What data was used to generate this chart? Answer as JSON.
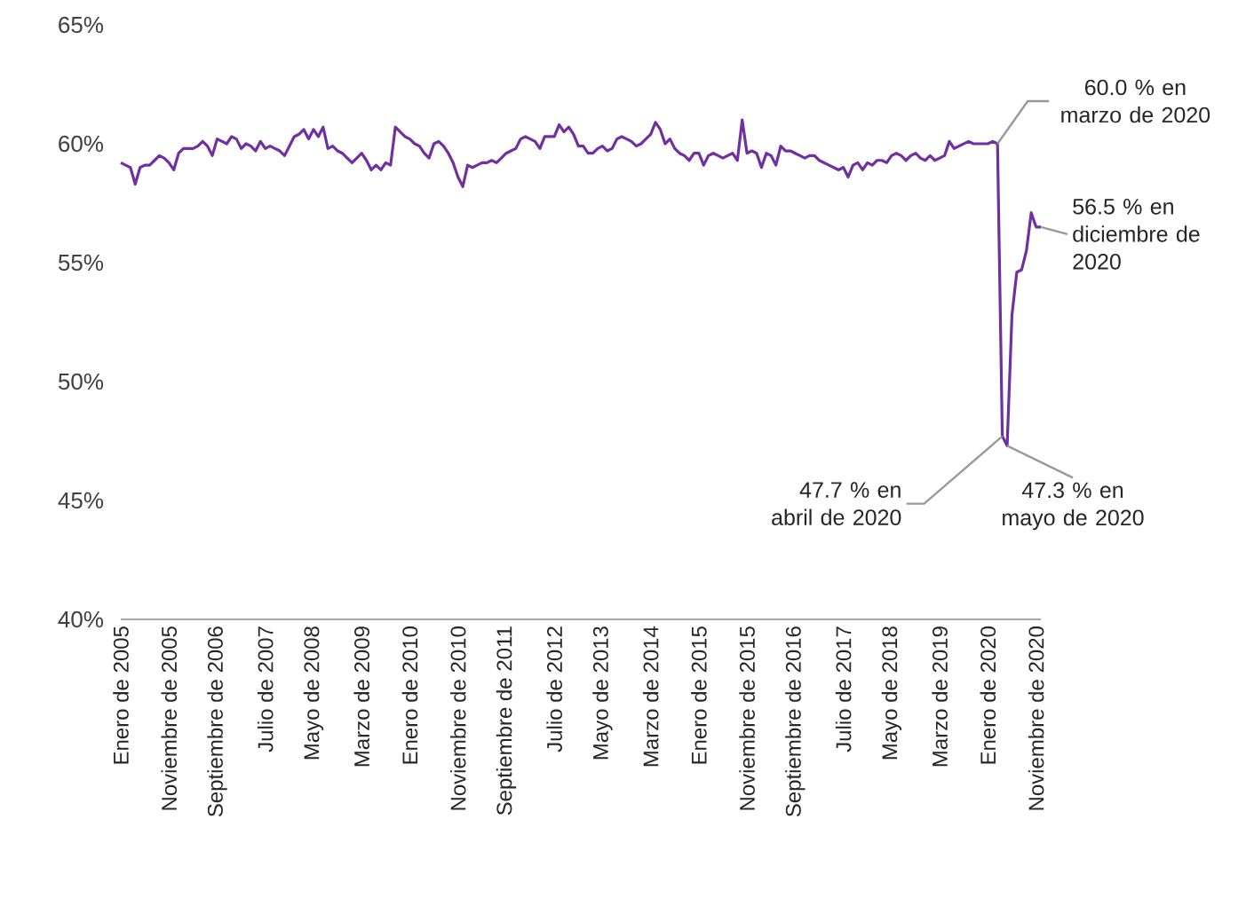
{
  "chart_data": {
    "type": "line",
    "color": "#7030a0",
    "line_style": "solid",
    "marker": "none",
    "grid": false,
    "x": [
      "2005-01",
      "2005-02",
      "2005-03",
      "2005-04",
      "2005-05",
      "2005-06",
      "2005-07",
      "2005-08",
      "2005-09",
      "2005-10",
      "2005-11",
      "2005-12",
      "2006-01",
      "2006-02",
      "2006-03",
      "2006-04",
      "2006-05",
      "2006-06",
      "2006-07",
      "2006-08",
      "2006-09",
      "2006-10",
      "2006-11",
      "2006-12",
      "2007-01",
      "2007-02",
      "2007-03",
      "2007-04",
      "2007-05",
      "2007-06",
      "2007-07",
      "2007-08",
      "2007-09",
      "2007-10",
      "2007-11",
      "2007-12",
      "2008-01",
      "2008-02",
      "2008-03",
      "2008-04",
      "2008-05",
      "2008-06",
      "2008-07",
      "2008-08",
      "2008-09",
      "2008-10",
      "2008-11",
      "2008-12",
      "2009-01",
      "2009-02",
      "2009-03",
      "2009-04",
      "2009-05",
      "2009-06",
      "2009-07",
      "2009-08",
      "2009-09",
      "2009-10",
      "2009-11",
      "2009-12",
      "2010-01",
      "2010-02",
      "2010-03",
      "2010-04",
      "2010-05",
      "2010-06",
      "2010-07",
      "2010-08",
      "2010-09",
      "2010-10",
      "2010-11",
      "2010-12",
      "2011-01",
      "2011-02",
      "2011-03",
      "2011-04",
      "2011-05",
      "2011-06",
      "2011-07",
      "2011-08",
      "2011-09",
      "2011-10",
      "2011-11",
      "2011-12",
      "2012-01",
      "2012-02",
      "2012-03",
      "2012-04",
      "2012-05",
      "2012-06",
      "2012-07",
      "2012-08",
      "2012-09",
      "2012-10",
      "2012-11",
      "2012-12",
      "2013-01",
      "2013-02",
      "2013-03",
      "2013-04",
      "2013-05",
      "2013-06",
      "2013-07",
      "2013-08",
      "2013-09",
      "2013-10",
      "2013-11",
      "2013-12",
      "2014-01",
      "2014-02",
      "2014-03",
      "2014-04",
      "2014-05",
      "2014-06",
      "2014-07",
      "2014-08",
      "2014-09",
      "2014-10",
      "2014-11",
      "2014-12",
      "2015-01",
      "2015-02",
      "2015-03",
      "2015-04",
      "2015-05",
      "2015-06",
      "2015-07",
      "2015-08",
      "2015-09",
      "2015-10",
      "2015-11",
      "2015-12",
      "2016-01",
      "2016-02",
      "2016-03",
      "2016-04",
      "2016-05",
      "2016-06",
      "2016-07",
      "2016-08",
      "2016-09",
      "2016-10",
      "2016-11",
      "2016-12",
      "2017-01",
      "2017-02",
      "2017-03",
      "2017-04",
      "2017-05",
      "2017-06",
      "2017-07",
      "2017-08",
      "2017-09",
      "2017-10",
      "2017-11",
      "2017-12",
      "2018-01",
      "2018-02",
      "2018-03",
      "2018-04",
      "2018-05",
      "2018-06",
      "2018-07",
      "2018-08",
      "2018-09",
      "2018-10",
      "2018-11",
      "2018-12",
      "2019-01",
      "2019-02",
      "2019-03",
      "2019-04",
      "2019-05",
      "2019-06",
      "2019-07",
      "2019-08",
      "2019-09",
      "2019-10",
      "2019-11",
      "2019-12",
      "2020-01",
      "2020-02",
      "2020-03",
      "2020-04",
      "2020-05",
      "2020-06",
      "2020-07",
      "2020-08",
      "2020-09",
      "2020-10",
      "2020-11",
      "2020-12"
    ],
    "values": [
      59.2,
      59.1,
      59.0,
      58.3,
      59.0,
      59.1,
      59.1,
      59.3,
      59.5,
      59.4,
      59.2,
      58.9,
      59.6,
      59.8,
      59.8,
      59.8,
      59.9,
      60.1,
      59.9,
      59.5,
      60.2,
      60.1,
      60.0,
      60.3,
      60.2,
      59.8,
      60.0,
      59.9,
      59.7,
      60.1,
      59.8,
      59.9,
      59.8,
      59.7,
      59.5,
      59.9,
      60.3,
      60.4,
      60.6,
      60.2,
      60.6,
      60.3,
      60.7,
      59.8,
      59.9,
      59.7,
      59.6,
      59.4,
      59.2,
      59.4,
      59.6,
      59.3,
      58.9,
      59.1,
      58.9,
      59.2,
      59.1,
      60.7,
      60.5,
      60.3,
      60.2,
      60.0,
      59.9,
      59.6,
      59.4,
      60.0,
      60.1,
      59.9,
      59.6,
      59.2,
      58.6,
      58.2,
      59.1,
      59.0,
      59.1,
      59.2,
      59.2,
      59.3,
      59.2,
      59.4,
      59.6,
      59.7,
      59.8,
      60.2,
      60.3,
      60.2,
      60.1,
      59.8,
      60.3,
      60.3,
      60.3,
      60.8,
      60.5,
      60.7,
      60.4,
      59.9,
      59.9,
      59.6,
      59.6,
      59.8,
      59.9,
      59.7,
      59.8,
      60.2,
      60.3,
      60.2,
      60.1,
      59.9,
      60.0,
      60.2,
      60.4,
      60.9,
      60.6,
      60.0,
      60.2,
      59.8,
      59.6,
      59.5,
      59.3,
      59.6,
      59.6,
      59.1,
      59.5,
      59.6,
      59.5,
      59.4,
      59.5,
      59.6,
      59.3,
      61.0,
      59.6,
      59.7,
      59.6,
      59.0,
      59.6,
      59.5,
      59.1,
      59.9,
      59.7,
      59.7,
      59.6,
      59.5,
      59.4,
      59.5,
      59.5,
      59.3,
      59.2,
      59.1,
      59.0,
      58.9,
      59.0,
      58.6,
      59.1,
      59.2,
      58.9,
      59.2,
      59.1,
      59.3,
      59.3,
      59.2,
      59.5,
      59.6,
      59.5,
      59.3,
      59.5,
      59.6,
      59.4,
      59.3,
      59.5,
      59.3,
      59.4,
      59.5,
      60.1,
      59.8,
      59.9,
      60.0,
      60.1,
      60.0,
      60.0,
      60.0,
      60.0,
      60.1,
      60.0,
      47.7,
      47.3,
      52.8,
      54.6,
      54.7,
      55.5,
      57.1,
      56.5,
      56.5
    ],
    "xlim": [
      "2005-01",
      "2020-12"
    ],
    "xticks": [
      {
        "value": "2005-01",
        "label": "Enero de 2005"
      },
      {
        "value": "2005-11",
        "label": "Noviembre de 2005"
      },
      {
        "value": "2006-09",
        "label": "Septiembre de 2006"
      },
      {
        "value": "2007-07",
        "label": "Julio de 2007"
      },
      {
        "value": "2008-05",
        "label": "Mayo de 2008"
      },
      {
        "value": "2009-03",
        "label": "Marzo de 2009"
      },
      {
        "value": "2010-01",
        "label": "Enero de 2010"
      },
      {
        "value": "2010-11",
        "label": "Noviembre de 2010"
      },
      {
        "value": "2011-09",
        "label": "Septiembre de 2011"
      },
      {
        "value": "2012-07",
        "label": "Julio de 2012"
      },
      {
        "value": "2013-05",
        "label": "Mayo de 2013"
      },
      {
        "value": "2014-03",
        "label": "Marzo de 2014"
      },
      {
        "value": "2015-01",
        "label": "Enero de 2015"
      },
      {
        "value": "2015-11",
        "label": "Noviembre de 2015"
      },
      {
        "value": "2016-09",
        "label": "Septiembre de 2016"
      },
      {
        "value": "2017-07",
        "label": "Julio de 2017"
      },
      {
        "value": "2018-05",
        "label": "Mayo de 2018"
      },
      {
        "value": "2019-03",
        "label": "Marzo de 2019"
      },
      {
        "value": "2020-01",
        "label": "Enero de 2020"
      },
      {
        "value": "2020-11",
        "label": "Noviembre de 2020"
      }
    ],
    "ylim": [
      40,
      65
    ],
    "yticks": [
      {
        "value": 40,
        "label": "40%"
      },
      {
        "value": 45,
        "label": "45%"
      },
      {
        "value": 50,
        "label": "50%"
      },
      {
        "value": 55,
        "label": "55%"
      },
      {
        "value": 60,
        "label": "60%"
      },
      {
        "value": 65,
        "label": "65%"
      }
    ],
    "annotations": [
      {
        "text": "60.0 % en marzo de 2020",
        "x": "2020-03",
        "y": 60.0
      },
      {
        "text": "56.5 % en diciembre de 2020",
        "x": "2020-12",
        "y": 56.5
      },
      {
        "text": "47.7 % en abril de 2020",
        "x": "2020-04",
        "y": 47.7
      },
      {
        "text": "47.3 % en mayo de 2020",
        "x": "2020-05",
        "y": 47.3
      }
    ]
  }
}
